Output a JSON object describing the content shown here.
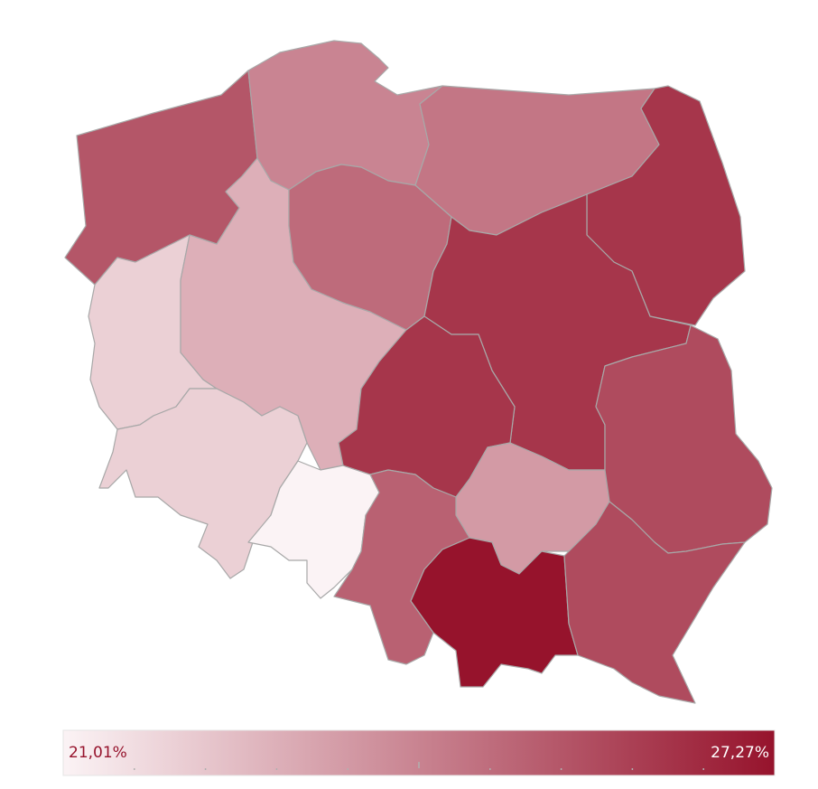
{
  "chart_data": {
    "type": "choropleth",
    "values": [
      25.4,
      24.1,
      24.5,
      26.3,
      22.0,
      22.9,
      24.8,
      26.3,
      22.0,
      21.01,
      26.3,
      23.5,
      25.7,
      25.1,
      27.27,
      25.7
    ],
    "scale": {
      "min": {
        "value": 21.01,
        "label": "21,01%"
      },
      "max": {
        "value": 27.27,
        "label": "27,27%"
      },
      "color_min": "#fbf3f5",
      "color_max": "#96132c"
    }
  }
}
